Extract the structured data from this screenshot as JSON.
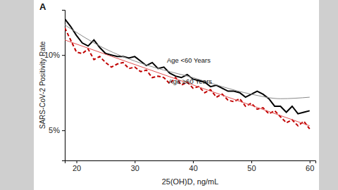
{
  "chart_data": {
    "type": "line",
    "title": "A",
    "x_label": "25(OH)D, ng/mL",
    "y_label": "SARS-CoV-2 Positivity Rate",
    "x": [
      18,
      19,
      20,
      21,
      22,
      23,
      24,
      25,
      26,
      27,
      28,
      29,
      30,
      31,
      32,
      33,
      34,
      35,
      36,
      37,
      38,
      39,
      40,
      41,
      42,
      43,
      44,
      45,
      46,
      47,
      48,
      49,
      50,
      51,
      52,
      53,
      54,
      55,
      56,
      57,
      58,
      59,
      60
    ],
    "series": [
      {
        "name": "Age <60 Years",
        "color": "#000000",
        "line_style": "solid",
        "values": [
          12.4,
          11.9,
          11.3,
          10.8,
          10.6,
          11.0,
          10.5,
          10.1,
          10.0,
          9.9,
          9.9,
          9.8,
          9.9,
          9.6,
          9.3,
          9.5,
          9.1,
          9.2,
          8.8,
          8.6,
          8.5,
          8.7,
          8.4,
          8.3,
          8.2,
          7.9,
          8.0,
          7.8,
          7.6,
          7.6,
          7.5,
          7.2,
          7.4,
          7.6,
          7.4,
          7.1,
          6.6,
          6.6,
          6.2,
          6.6,
          6.1,
          6.2,
          6.3
        ]
      },
      {
        "name": "Age ≥60 Years",
        "color": "#c00000",
        "line_style": "dashed",
        "values": [
          11.8,
          11.0,
          10.2,
          10.1,
          10.4,
          9.7,
          9.9,
          9.5,
          9.2,
          9.4,
          9.5,
          9.1,
          9.2,
          8.9,
          9.0,
          8.5,
          8.6,
          8.5,
          8.1,
          8.5,
          8.0,
          8.2,
          7.8,
          7.9,
          7.5,
          7.7,
          7.2,
          7.4,
          7.0,
          6.9,
          7.1,
          6.6,
          6.8,
          6.4,
          6.5,
          6.1,
          6.3,
          5.9,
          5.5,
          5.7,
          5.3,
          5.6,
          5.1
        ]
      },
      {
        "color": "#8a8a8a",
        "line_style": "solid",
        "x": [
          18,
          25,
          30,
          35,
          40,
          45,
          50,
          55,
          60
        ],
        "values": [
          12.0,
          10.4,
          9.6,
          9.0,
          8.5,
          7.9,
          7.4,
          7.1,
          7.2
        ]
      },
      {
        "color": "#e05050",
        "line_style": "solid",
        "x": [
          18,
          60
        ],
        "values": [
          11.0,
          5.3
        ]
      }
    ],
    "annotations": [
      {
        "text": "Age <60 Years",
        "x": 35.5,
        "y": 9.5
      },
      {
        "text": "Age ≥60 Years",
        "x": 35.8,
        "y": 8.1
      }
    ],
    "xlim": [
      18,
      61
    ],
    "xticks": [
      20,
      30,
      40,
      50,
      60
    ],
    "ylim": [
      3,
      13
    ],
    "yticks": [
      {
        "value": 5,
        "label": "5%"
      },
      {
        "value": 10,
        "label": "10%"
      }
    ],
    "grid": false
  }
}
